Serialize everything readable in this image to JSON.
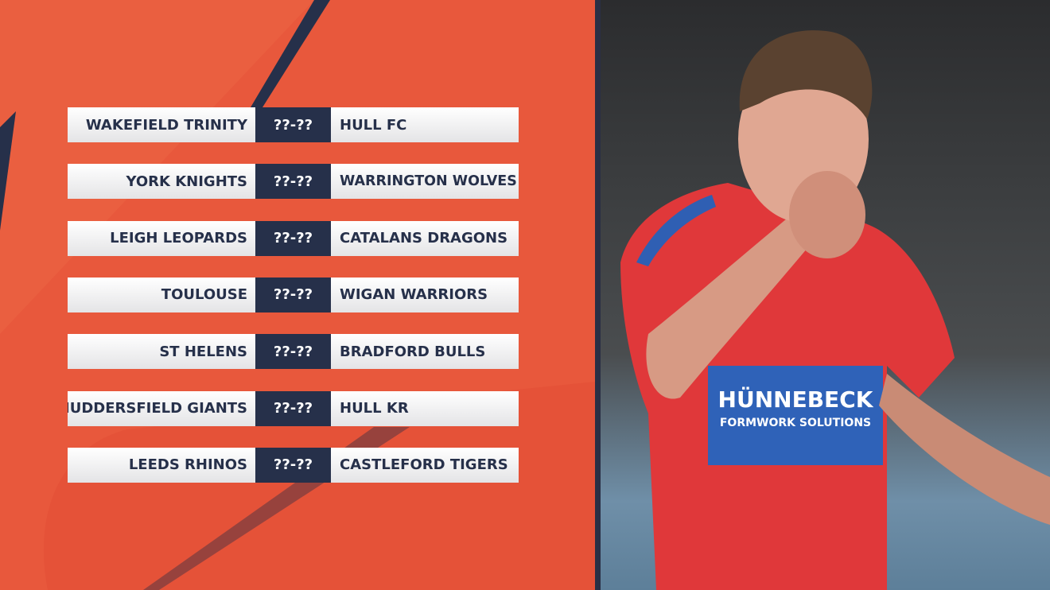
{
  "fixtures": [
    {
      "home": "WAKEFIELD TRINITY",
      "score": "??-??",
      "away": "HULL FC"
    },
    {
      "home": "YORK KNIGHTS",
      "score": "??-??",
      "away": "WARRINGTON WOLVES"
    },
    {
      "home": "LEIGH LEOPARDS",
      "score": "??-??",
      "away": "CATALANS DRAGONS"
    },
    {
      "home": "TOULOUSE",
      "score": "??-??",
      "away": "WIGAN WARRIORS"
    },
    {
      "home": "ST HELENS",
      "score": "??-??",
      "away": "BRADFORD BULLS"
    },
    {
      "home": "HUDDERSFIELD GIANTS",
      "score": "??-??",
      "away": "HULL KR"
    },
    {
      "home": "LEEDS RHINOS",
      "score": "??-??",
      "away": "CASTLEFORD TIGERS"
    }
  ],
  "photo": {
    "shirt_sponsor": "HÜNNEBECK",
    "shirt_sponsor_tagline": "FORMWORK SOLUTIONS"
  }
}
